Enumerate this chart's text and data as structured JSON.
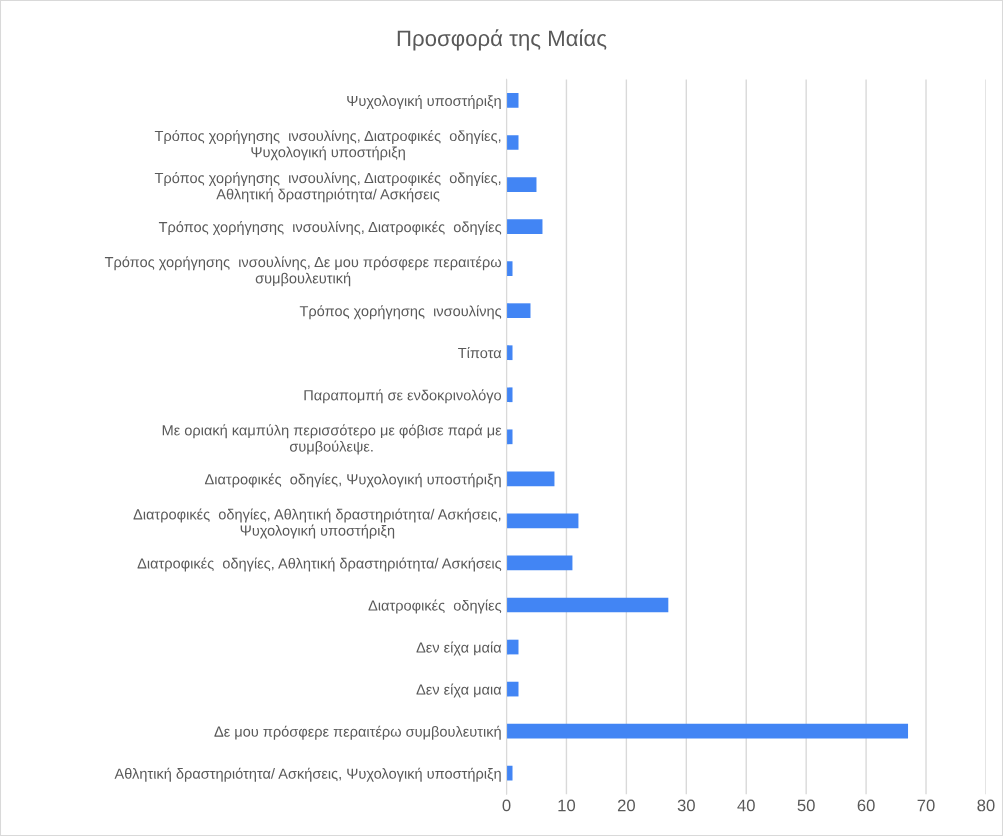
{
  "chart_data": {
    "type": "bar",
    "orientation": "horizontal",
    "title": "Προσφορά της Μαίας",
    "categories": [
      "Ψυχολογική υποστήριξη",
      "Τρόπος χορήγησης  ινσουλίνης, Διατροφικές  οδηγίες,\nΨυχολογική υποστήριξη",
      "Τρόπος χορήγησης  ινσουλίνης, Διατροφικές  οδηγίες,\nΑθλητική δραστηριότητα/ Ασκήσεις",
      "Τρόπος χορήγησης  ινσουλίνης, Διατροφικές  οδηγίες",
      "Τρόπος χορήγησης  ινσουλίνης, Δε μου πρόσφερε περαιτέρω\nσυμβουλευτική",
      "Τρόπος χορήγησης  ινσουλίνης",
      "Τίποτα",
      "Παραπομπή σε ενδοκρινολόγο",
      "Με οριακή καμπύλη περισσότερο με φόβισε παρά με\nσυμβούλεψε.",
      "Διατροφικές  οδηγίες, Ψυχολογική υποστήριξη",
      "Διατροφικές  οδηγίες, Αθλητική δραστηριότητα/ Ασκήσεις,\nΨυχολογική υποστήριξη",
      "Διατροφικές  οδηγίες, Αθλητική δραστηριότητα/ Ασκήσεις",
      "Διατροφικές  οδηγίες",
      "Δεν είχα μαία",
      "Δεν είχα μαια",
      "Δε μου πρόσφερε περαιτέρω συμβουλευτική",
      "Αθλητική δραστηριότητα/ Ασκήσεις, Ψυχολογική υποστήριξη"
    ],
    "values": [
      2,
      2,
      5,
      6,
      1,
      4,
      1,
      1,
      1,
      8,
      12,
      11,
      27,
      2,
      2,
      67,
      1
    ],
    "color": "#4285f4",
    "xlim": [
      0,
      80
    ],
    "xticks": [
      0,
      10,
      20,
      30,
      40,
      50,
      60,
      70,
      80
    ],
    "grid": "x",
    "legend": false
  }
}
